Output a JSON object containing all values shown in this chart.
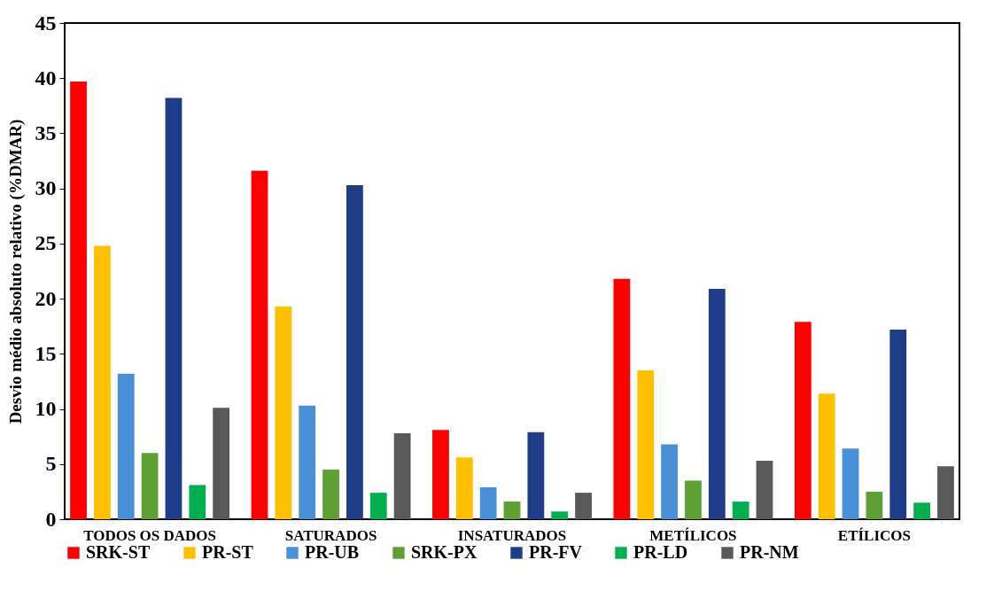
{
  "chart_data": {
    "type": "bar",
    "ylabel": "Desvio médio absoluto relativo (%DMAR)",
    "categories": [
      "TODOS OS DADOS",
      "SATURADOS",
      "INSATURADOS",
      "METÍLICOS",
      "ETÍLICOS"
    ],
    "series": [
      {
        "name": "SRK-ST",
        "color": "#ff0000",
        "values": [
          39.7,
          31.6,
          8.1,
          21.8,
          17.9
        ]
      },
      {
        "name": "PR-ST",
        "color": "#ffc000",
        "values": [
          24.8,
          19.3,
          5.6,
          13.5,
          11.4
        ]
      },
      {
        "name": "PR-UB",
        "color": "#4a90d9",
        "values": [
          13.2,
          10.3,
          2.9,
          6.8,
          6.4
        ]
      },
      {
        "name": "SRK-PX",
        "color": "#5fa035",
        "values": [
          6.0,
          4.5,
          1.6,
          3.5,
          2.5
        ]
      },
      {
        "name": "PR-FV",
        "color": "#1f3c88",
        "values": [
          38.2,
          30.3,
          7.9,
          20.9,
          17.2
        ]
      },
      {
        "name": "PR-LD",
        "color": "#00b050",
        "values": [
          3.1,
          2.4,
          0.7,
          1.6,
          1.5
        ]
      },
      {
        "name": "PR-NM",
        "color": "#595959",
        "values": [
          10.1,
          7.8,
          2.4,
          5.3,
          4.8
        ]
      }
    ],
    "ylim": [
      0,
      45
    ],
    "yticks": [
      0,
      5,
      10,
      15,
      20,
      25,
      30,
      35,
      40,
      45
    ],
    "grid": false,
    "legend": "bottom"
  }
}
